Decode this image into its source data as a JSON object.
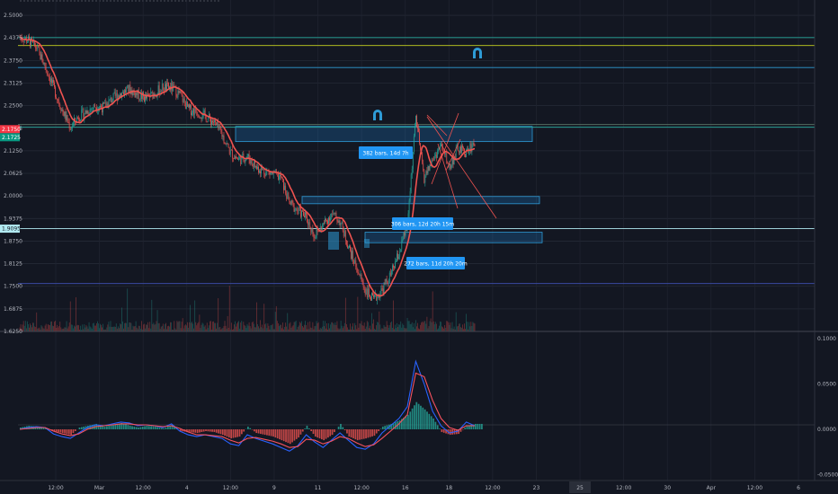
{
  "chart_data": [
    {
      "type": "candlestick",
      "title": "",
      "price_axis": {
        "ticks": [
          "2.5000",
          "2.4375",
          "2.3750",
          "2.3125",
          "2.2500",
          "2.1875",
          "2.1250",
          "2.0625",
          "2.0000",
          "1.9375",
          "1.8750",
          "1.8125",
          "1.7500",
          "1.6875",
          "1.6250"
        ],
        "range": [
          1.625,
          2.53
        ],
        "price_tags": [
          {
            "label": "2.1750",
            "value": 2.175,
            "color": "#f23645"
          },
          {
            "label": "2.1725",
            "value": 2.1725,
            "color": "#089981"
          },
          {
            "label": "1.9095",
            "value": 1.9095,
            "color": "#b2ebf2"
          }
        ]
      },
      "time_axis": {
        "labels": [
          "12:00",
          "Mar",
          "12:00",
          "4",
          "12:00",
          "9",
          "11",
          "12:00",
          "16",
          "18",
          "12:00",
          "23",
          "25",
          "12:00",
          "30",
          "Apr",
          "12:00",
          "6"
        ],
        "highlighted": [
          "25"
        ]
      },
      "horizontal_levels": [
        {
          "value": 2.4385,
          "color": "#26a69a"
        },
        {
          "value": 2.4165,
          "color": "#c6d11f"
        },
        {
          "value": 2.3555,
          "color": "#2e9bd6"
        },
        {
          "value": 2.1975,
          "color": "#5f7a6a"
        },
        {
          "value": 2.1905,
          "color": "#26a69a"
        },
        {
          "value": 1.9095,
          "color": "#b2ebf2"
        },
        {
          "value": 1.7575,
          "color": "#3f51b5"
        }
      ],
      "zones": [
        {
          "from": 2.1925,
          "to": 2.1505
        },
        {
          "from": 1.9985,
          "to": 1.9785
        },
        {
          "from": 1.8995,
          "to": 1.8705
        }
      ],
      "measure_labels": [
        "382 bars, 14d 7h",
        "306 bars, 12d 20h 15m",
        "272 bars, 11d 20h 20m"
      ],
      "series": [
        {
          "values": [
            2.44,
            2.43,
            2.41,
            2.36,
            2.3,
            2.24,
            2.19,
            2.22,
            2.235,
            2.25,
            2.245,
            2.27,
            2.285,
            2.295,
            2.28,
            2.27,
            2.285,
            2.3,
            2.3,
            2.28,
            2.24,
            2.235,
            2.22,
            2.205,
            2.17,
            2.12,
            2.1,
            2.11,
            2.08,
            2.07,
            2.06,
            2.05,
            1.98,
            1.96,
            1.94,
            1.89,
            1.92,
            1.95,
            1.93,
            1.86,
            1.8,
            1.74,
            1.71,
            1.74,
            1.78,
            1.84,
            1.92,
            2.22,
            2.05,
            2.1,
            2.14,
            2.08,
            2.13,
            2.12,
            2.15
          ]
        }
      ]
    },
    {
      "type": "macd",
      "y_axis": {
        "ticks": [
          "0.1000",
          "0.0500",
          "0.0000",
          "-0.0500"
        ],
        "range": [
          -0.0515,
          0.104
        ]
      },
      "histogram": [
        0.002,
        0.004,
        0.003,
        0.001,
        -0.002,
        -0.004,
        -0.006,
        0.002,
        0.004,
        0.006,
        0.003,
        0.005,
        0.007,
        0.004,
        0.002,
        0.004,
        0.003,
        0.001,
        0.005,
        -0.002,
        -0.003,
        -0.004,
        -0.002,
        -0.003,
        -0.006,
        -0.01,
        -0.008,
        0.003,
        -0.004,
        -0.006,
        -0.008,
        -0.012,
        -0.016,
        -0.009,
        0.004,
        -0.008,
        -0.012,
        -0.006,
        0.006,
        -0.008,
        -0.012,
        -0.01,
        -0.007,
        0.003,
        0.006,
        0.01,
        0.016,
        0.03,
        0.022,
        0.012,
        -0.003,
        -0.006,
        -0.005,
        0.004,
        0.006
      ],
      "series": [
        {
          "color": "#2962ff",
          "values": [
            0.0,
            0.002,
            0.003,
            0.002,
            -0.005,
            -0.008,
            -0.01,
            -0.004,
            0.002,
            0.005,
            0.004,
            0.006,
            0.008,
            0.007,
            0.004,
            0.005,
            0.004,
            0.002,
            0.006,
            -0.002,
            -0.006,
            -0.008,
            -0.006,
            -0.008,
            -0.01,
            -0.016,
            -0.018,
            -0.006,
            -0.01,
            -0.013,
            -0.016,
            -0.02,
            -0.024,
            -0.018,
            -0.006,
            -0.014,
            -0.02,
            -0.012,
            -0.004,
            -0.012,
            -0.02,
            -0.022,
            -0.016,
            -0.004,
            0.004,
            0.012,
            0.025,
            0.075,
            0.05,
            0.02,
            0.004,
            -0.004,
            -0.002,
            0.008,
            0.004
          ]
        },
        {
          "color": "#f7525f",
          "values": [
            0.0,
            0.001,
            0.002,
            0.002,
            -0.002,
            -0.005,
            -0.007,
            -0.005,
            0.0,
            0.003,
            0.004,
            0.005,
            0.006,
            0.006,
            0.005,
            0.005,
            0.004,
            0.003,
            0.004,
            0.001,
            -0.003,
            -0.006,
            -0.006,
            -0.007,
            -0.008,
            -0.012,
            -0.015,
            -0.01,
            -0.009,
            -0.011,
            -0.013,
            -0.016,
            -0.02,
            -0.019,
            -0.011,
            -0.012,
            -0.016,
            -0.013,
            -0.008,
            -0.01,
            -0.015,
            -0.019,
            -0.017,
            -0.01,
            -0.002,
            0.006,
            0.016,
            0.062,
            0.058,
            0.032,
            0.012,
            0.002,
            -0.001,
            0.004,
            0.004
          ]
        }
      ]
    }
  ]
}
